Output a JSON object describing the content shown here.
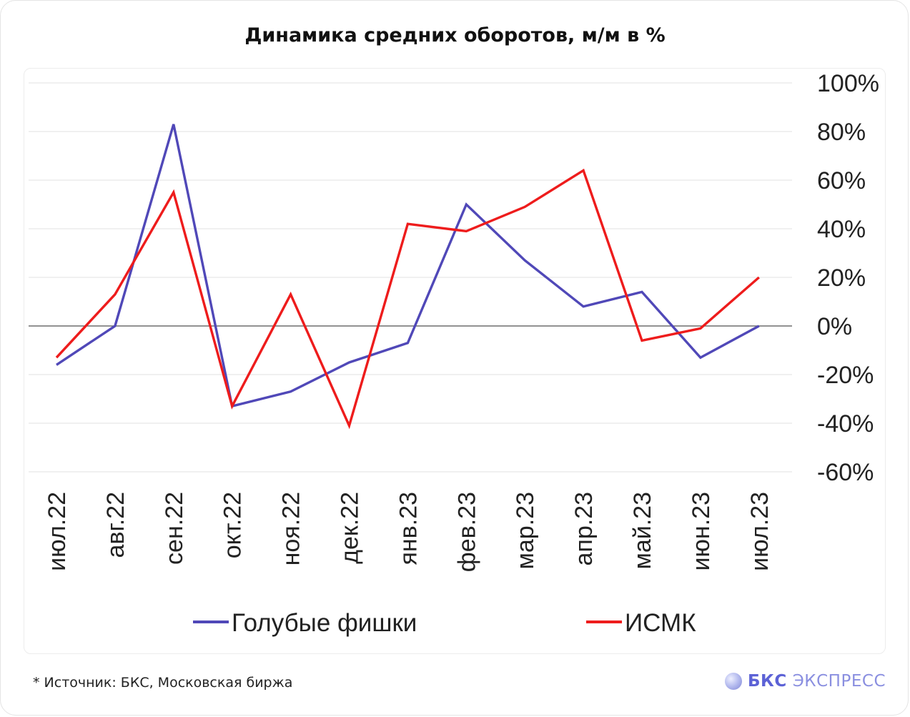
{
  "title": "Динамика средних оборотов, м/м в %",
  "footnote": "*  Источник: БКС, Московская биржа",
  "brand": {
    "name_bold": "БКС",
    "name_light": "ЭКСПРЕСС",
    "logo_icon": "bcs-sphere-icon"
  },
  "chart_data": {
    "type": "line",
    "categories": [
      "июл.22",
      "авг.22",
      "сен.22",
      "окт.22",
      "ноя.22",
      "дек.22",
      "янв.23",
      "фев.23",
      "мар.23",
      "апр.23",
      "май.23",
      "июн.23",
      "июл.23"
    ],
    "series": [
      {
        "name": "Голубые фишки",
        "color": "#5048b8",
        "values": [
          -16,
          0,
          83,
          -33,
          -27,
          -15,
          -7,
          50,
          27,
          8,
          14,
          -13,
          0
        ]
      },
      {
        "name": "ИСМК",
        "color": "#ee1c1c",
        "values": [
          -13,
          13,
          55,
          -33,
          13,
          -41,
          42,
          39,
          49,
          64,
          -6,
          -1,
          20
        ]
      }
    ],
    "y_ticks": [
      100,
      80,
      60,
      40,
      20,
      0,
      -20,
      -40,
      -60
    ],
    "y_tick_labels": [
      "100%",
      "80%",
      "60%",
      "40%",
      "20%",
      "0%",
      "-20%",
      "-40%",
      "-60%"
    ],
    "ylim": [
      -60,
      100
    ],
    "y_axis_position": "right",
    "grid": "horizontal",
    "legend_position": "bottom",
    "xlabel": "",
    "ylabel": ""
  }
}
